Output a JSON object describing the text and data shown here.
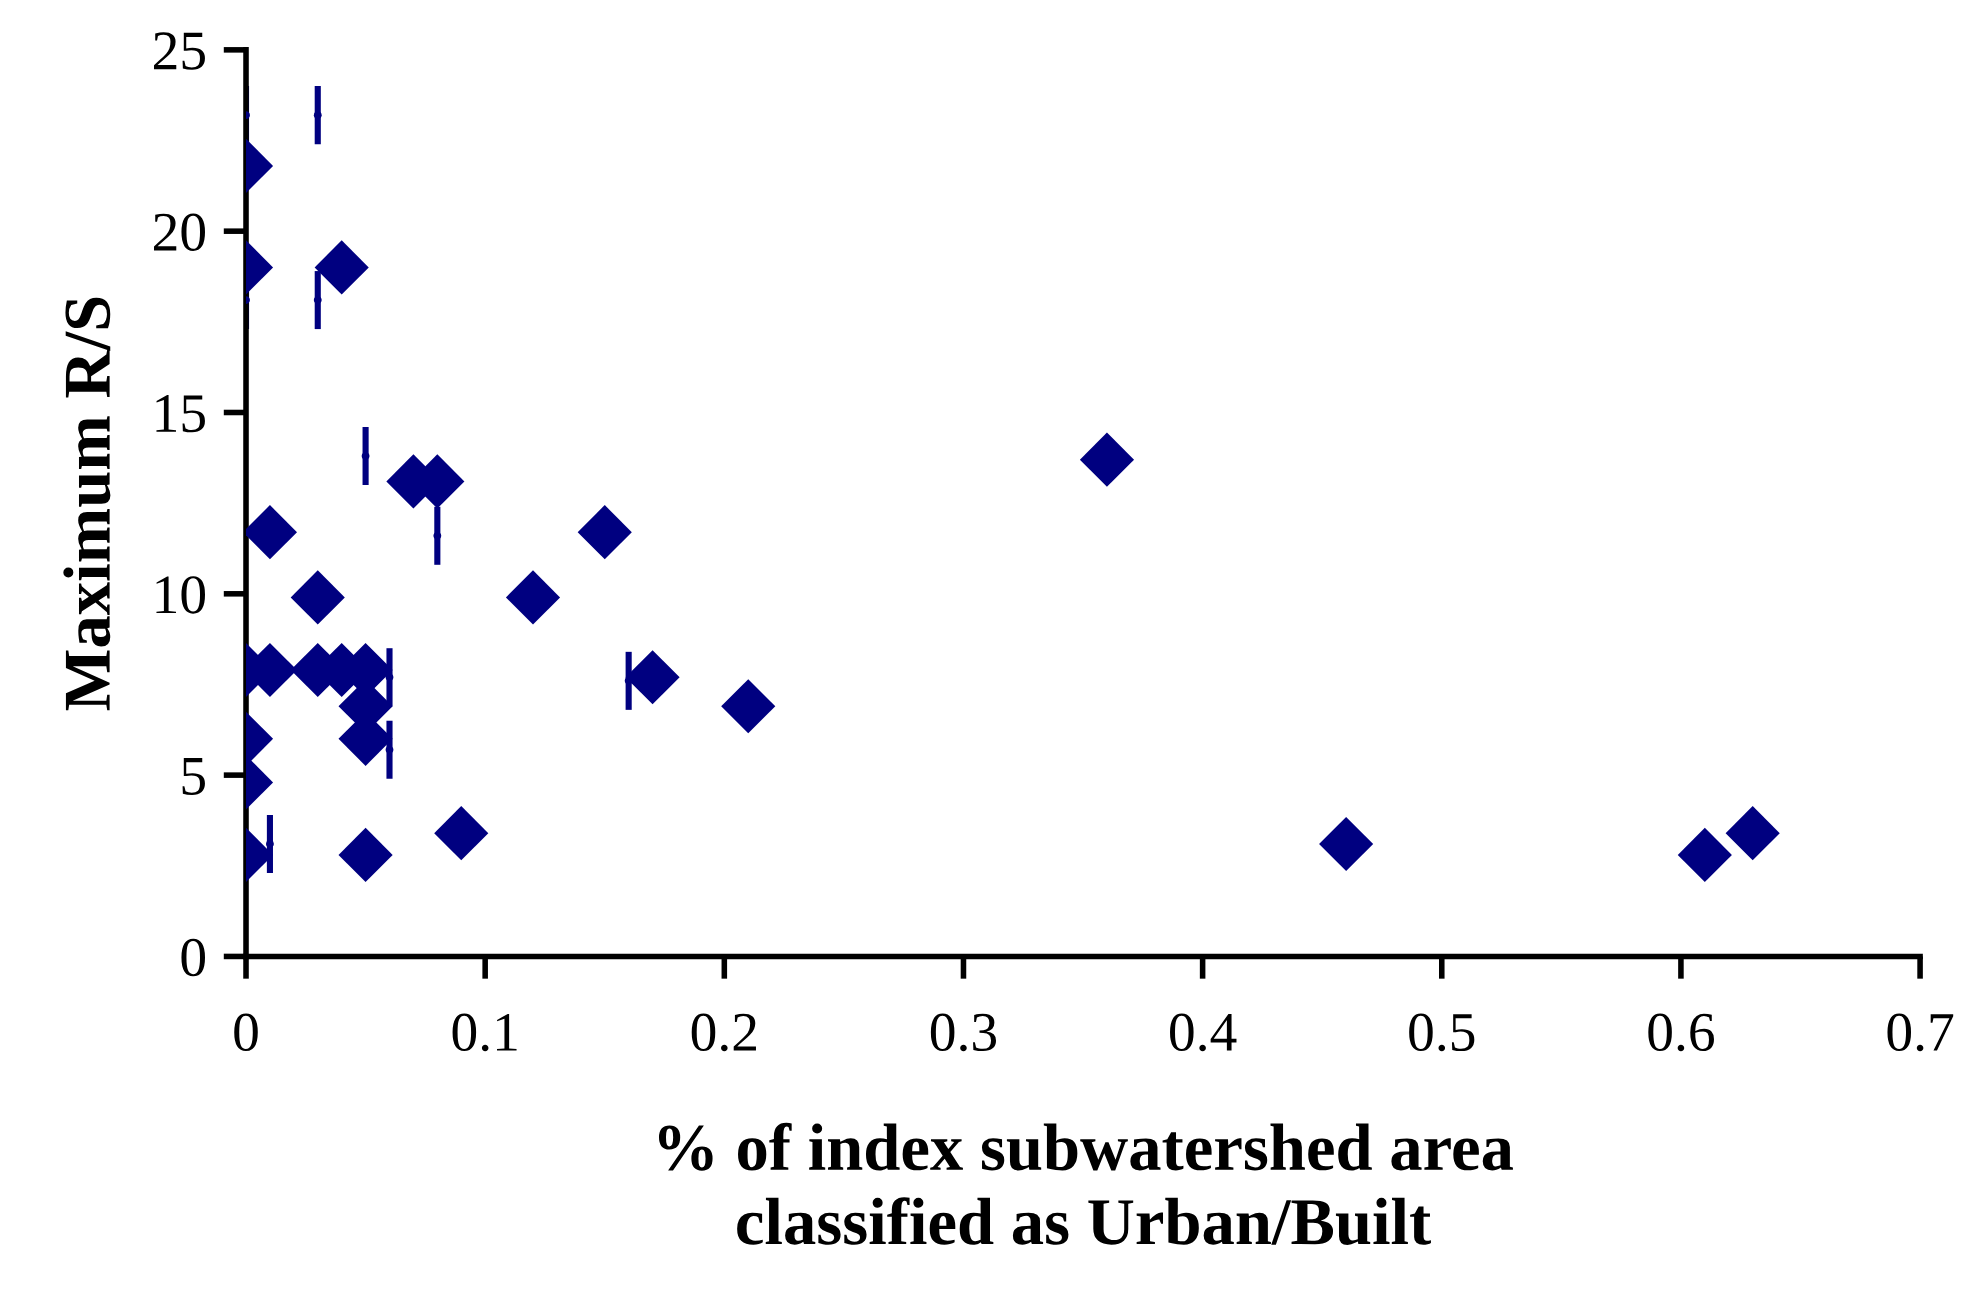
{
  "chart_data": {
    "type": "scatter",
    "xlabel": "% of index subwatershed area\nclassified as Urban/Built",
    "ylabel": "Maximum R/S",
    "xlim": [
      0,
      0.7
    ],
    "xticks": [
      0,
      0.1,
      0.2,
      0.3,
      0.4,
      0.5,
      0.6,
      0.7
    ],
    "ylim": [
      0,
      25
    ],
    "yticks": [
      0,
      5,
      10,
      15,
      20,
      25
    ],
    "grid": false,
    "legend": false,
    "series": [
      {
        "type": "scatter",
        "marker": "circle",
        "color": "#000080",
        "x": [
          0,
          0.03,
          0,
          0.03,
          0.05,
          0.08,
          0.06,
          0.06,
          0.01,
          0.16
        ],
        "values": [
          23.2,
          23.2,
          18.1,
          18.1,
          13.8,
          11.6,
          7.7,
          5.7,
          3.1,
          7.6
        ],
        "errors": [
          0.8,
          0.8,
          0.8,
          0.8,
          0.8,
          0.8,
          0.8,
          0.8,
          0.8,
          0.8
        ]
      },
      {
        "type": "scatter",
        "marker": "diamond",
        "color": "#000080",
        "x": [
          0,
          0,
          0.04,
          0.07,
          0.08,
          0.01,
          0.15,
          0.03,
          0.12,
          0,
          0.01,
          0.03,
          0.04,
          0.05,
          0.17,
          0.05,
          0,
          0.05,
          0,
          0.09,
          0,
          0.05,
          0.21,
          0.36,
          0.46,
          0.61,
          0.63
        ],
        "values": [
          21.8,
          19,
          19,
          13.1,
          13.1,
          11.7,
          11.7,
          9.9,
          9.9,
          7.9,
          7.9,
          7.9,
          7.9,
          7.9,
          7.7,
          6.9,
          6,
          6,
          4.8,
          3.4,
          2.8,
          2.8,
          6.9,
          13.7,
          3.1,
          2.8,
          3.4
        ]
      }
    ]
  }
}
